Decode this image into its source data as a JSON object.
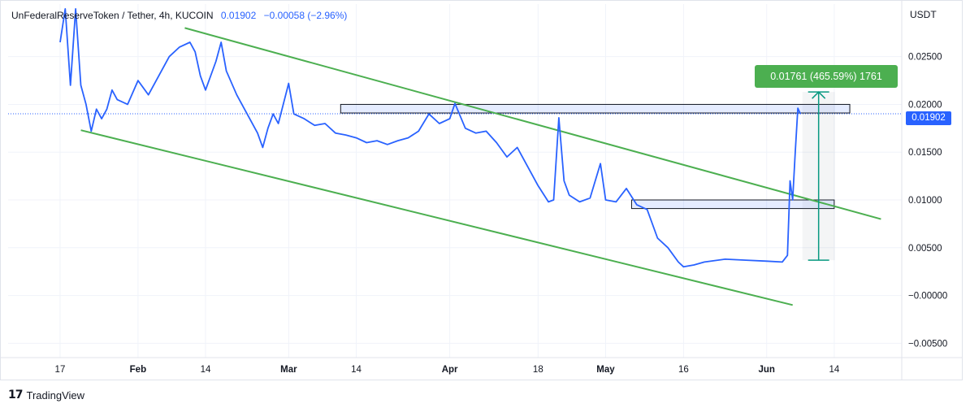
{
  "header": {
    "symbol": "UnFederalReserveToken / Tether, 4h, KUCOIN",
    "last": "0.01902",
    "change": "−0.00058 (−2.96%)"
  },
  "footer": {
    "brand": "TradingView",
    "logo": "17"
  },
  "chart_data": {
    "type": "line",
    "title": "",
    "unit": "USDT",
    "last_price": 0.01902,
    "last_price_label": "0.01902",
    "x_axis_ticks": [
      "17",
      "Feb",
      "14",
      "Mar",
      "14",
      "Apr",
      "18",
      "May",
      "16",
      "Jun",
      "14"
    ],
    "y_axis_ticks": [
      "0.02500",
      "0.02000",
      "0.01500",
      "0.01000",
      "0.00500",
      "−0.00000",
      "−0.00500"
    ],
    "ylim": [
      -0.0065,
      0.0305
    ],
    "series": [
      {
        "color": "#2962ff",
        "points": [
          [
            "2024-01-17",
            0.0265
          ],
          [
            "2024-01-18",
            0.03
          ],
          [
            "2024-01-19",
            0.022
          ],
          [
            "2024-01-20",
            0.03
          ],
          [
            "2024-01-21",
            0.022
          ],
          [
            "2024-01-22",
            0.02
          ],
          [
            "2024-01-23",
            0.0172
          ],
          [
            "2024-01-24",
            0.0195
          ],
          [
            "2024-01-25",
            0.0185
          ],
          [
            "2024-01-26",
            0.0195
          ],
          [
            "2024-01-27",
            0.0215
          ],
          [
            "2024-01-28",
            0.0205
          ],
          [
            "2024-01-30",
            0.02
          ],
          [
            "2024-02-01",
            0.0225
          ],
          [
            "2024-02-03",
            0.021
          ],
          [
            "2024-02-05",
            0.023
          ],
          [
            "2024-02-07",
            0.025
          ],
          [
            "2024-02-09",
            0.026
          ],
          [
            "2024-02-11",
            0.0265
          ],
          [
            "2024-02-12",
            0.0255
          ],
          [
            "2024-02-13",
            0.023
          ],
          [
            "2024-02-14",
            0.0215
          ],
          [
            "2024-02-16",
            0.0245
          ],
          [
            "2024-02-17",
            0.0265
          ],
          [
            "2024-02-18",
            0.0235
          ],
          [
            "2024-02-20",
            0.021
          ],
          [
            "2024-02-22",
            0.019
          ],
          [
            "2024-02-24",
            0.017
          ],
          [
            "2024-02-25",
            0.0155
          ],
          [
            "2024-02-26",
            0.0175
          ],
          [
            "2024-02-27",
            0.019
          ],
          [
            "2024-02-28",
            0.018
          ],
          [
            "2024-03-01",
            0.0222
          ],
          [
            "2024-03-02",
            0.019
          ],
          [
            "2024-03-04",
            0.0185
          ],
          [
            "2024-03-06",
            0.0178
          ],
          [
            "2024-03-08",
            0.018
          ],
          [
            "2024-03-10",
            0.017
          ],
          [
            "2024-03-12",
            0.0168
          ],
          [
            "2024-03-14",
            0.0165
          ],
          [
            "2024-03-16",
            0.016
          ],
          [
            "2024-03-18",
            0.0162
          ],
          [
            "2024-03-20",
            0.0158
          ],
          [
            "2024-03-22",
            0.0162
          ],
          [
            "2024-03-24",
            0.0165
          ],
          [
            "2024-03-26",
            0.0172
          ],
          [
            "2024-03-28",
            0.019
          ],
          [
            "2024-03-30",
            0.018
          ],
          [
            "2024-04-01",
            0.0185
          ],
          [
            "2024-04-02",
            0.0201
          ],
          [
            "2024-04-04",
            0.0175
          ],
          [
            "2024-04-06",
            0.017
          ],
          [
            "2024-04-08",
            0.0172
          ],
          [
            "2024-04-10",
            0.016
          ],
          [
            "2024-04-12",
            0.0145
          ],
          [
            "2024-04-14",
            0.0155
          ],
          [
            "2024-04-16",
            0.0135
          ],
          [
            "2024-04-18",
            0.0115
          ],
          [
            "2024-04-20",
            0.0098
          ],
          [
            "2024-04-21",
            0.01
          ],
          [
            "2024-04-22",
            0.0186
          ],
          [
            "2024-04-23",
            0.012
          ],
          [
            "2024-04-24",
            0.0105
          ],
          [
            "2024-04-26",
            0.0098
          ],
          [
            "2024-04-28",
            0.0102
          ],
          [
            "2024-04-30",
            0.0138
          ],
          [
            "2024-05-01",
            0.01
          ],
          [
            "2024-05-03",
            0.0098
          ],
          [
            "2024-05-05",
            0.0112
          ],
          [
            "2024-05-07",
            0.0095
          ],
          [
            "2024-05-09",
            0.009
          ],
          [
            "2024-05-11",
            0.006
          ],
          [
            "2024-05-13",
            0.005
          ],
          [
            "2024-05-15",
            0.0035
          ],
          [
            "2024-05-16",
            0.003
          ],
          [
            "2024-05-18",
            0.0032
          ],
          [
            "2024-05-20",
            0.0035
          ],
          [
            "2024-05-24",
            0.0038
          ],
          [
            "2024-05-28",
            0.0037
          ],
          [
            "2024-06-01",
            0.0036
          ],
          [
            "2024-06-04",
            0.0035
          ],
          [
            "2024-06-05",
            0.0042
          ],
          [
            "2024-06-05T12",
            0.012
          ],
          [
            "2024-06-06",
            0.01
          ],
          [
            "2024-06-06T12",
            0.015
          ],
          [
            "2024-06-07",
            0.0196
          ],
          [
            "2024-06-07T12",
            0.019
          ]
        ]
      }
    ],
    "annotations": [
      {
        "type": "trendline",
        "color": "#4caf50",
        "from": [
          "2024-02-10",
          0.028
        ],
        "to": [
          "2024-06-23",
          0.008
        ]
      },
      {
        "type": "trendline",
        "color": "#4caf50",
        "from": [
          "2024-01-21",
          0.0173
        ],
        "to": [
          "2024-06-06",
          -0.001
        ]
      },
      {
        "type": "zone",
        "from": [
          "2024-03-11",
          0.02
        ],
        "to": [
          "2024-06-17",
          0.0191
        ]
      },
      {
        "type": "zone",
        "from": [
          "2024-05-06",
          0.01
        ],
        "to": [
          "2024-06-14",
          0.0091
        ]
      },
      {
        "type": "measure",
        "label": "0.01761 (465.59%) 1761",
        "from": [
          "2024-06-11",
          0.0037
        ],
        "to": [
          "2024-06-11",
          0.0213
        ],
        "color": "#089981"
      }
    ]
  }
}
